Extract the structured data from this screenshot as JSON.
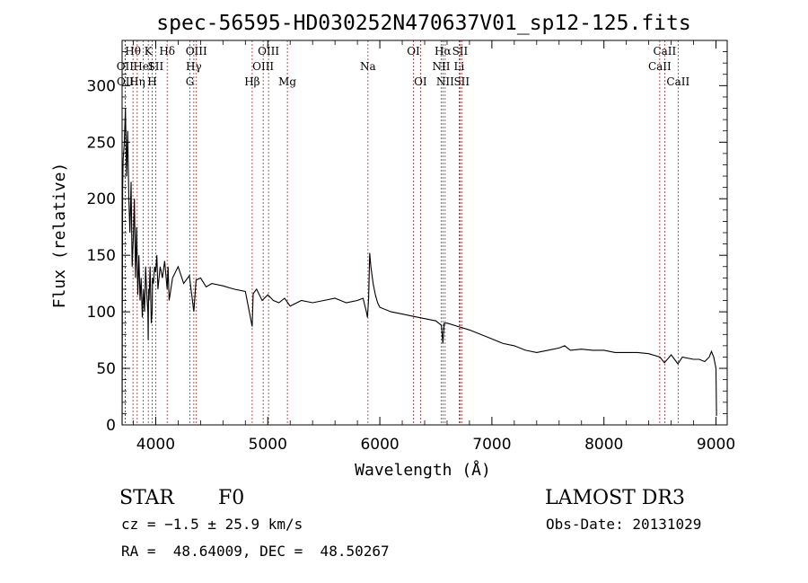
{
  "chart_data": {
    "type": "line",
    "title": "spec-56595-HD030252N470637V01_sp12-125.fits",
    "xlabel": "Wavelength (Å)",
    "ylabel": "Flux (relative)",
    "xlim": [
      3700,
      9100
    ],
    "ylim": [
      0,
      340
    ],
    "x_ticks": [
      4000,
      5000,
      6000,
      7000,
      8000,
      9000
    ],
    "y_ticks": [
      0,
      50,
      100,
      150,
      200,
      250,
      300
    ],
    "series": [
      {
        "name": "flux",
        "x": [
          3700,
          3705,
          3710,
          3720,
          3730,
          3740,
          3750,
          3760,
          3770,
          3780,
          3790,
          3800,
          3810,
          3820,
          3830,
          3840,
          3850,
          3860,
          3870,
          3880,
          3890,
          3900,
          3910,
          3920,
          3930,
          3933,
          3936,
          3940,
          3950,
          3960,
          3968,
          3972,
          3980,
          3990,
          4000,
          4010,
          4020,
          4040,
          4060,
          4080,
          4102,
          4110,
          4120,
          4150,
          4200,
          4250,
          4300,
          4340,
          4360,
          4400,
          4450,
          4500,
          4600,
          4700,
          4800,
          4861,
          4870,
          4900,
          4950,
          5000,
          5050,
          5100,
          5150,
          5200,
          5300,
          5400,
          5500,
          5600,
          5700,
          5800,
          5850,
          5880,
          5890,
          5900,
          5910,
          5920,
          5940,
          5960,
          5980,
          6000,
          6100,
          6200,
          6300,
          6400,
          6500,
          6550,
          6563,
          6575,
          6600,
          6700,
          6800,
          6900,
          7000,
          7100,
          7200,
          7300,
          7400,
          7500,
          7600,
          7650,
          7700,
          7800,
          7900,
          8000,
          8100,
          8200,
          8300,
          8400,
          8500,
          8540,
          8600,
          8660,
          8700,
          8800,
          8850,
          8900,
          8940,
          8960,
          8980,
          9000,
          9005
        ],
        "y": [
          0,
          210,
          235,
          250,
          280,
          220,
          260,
          200,
          170,
          215,
          140,
          165,
          200,
          130,
          175,
          115,
          150,
          110,
          130,
          95,
          120,
          100,
          140,
          115,
          100,
          75,
          120,
          110,
          140,
          90,
          100,
          130,
          125,
          140,
          135,
          150,
          120,
          140,
          130,
          145,
          120,
          140,
          110,
          130,
          140,
          125,
          132,
          100,
          128,
          130,
          122,
          125,
          123,
          120,
          118,
          87,
          116,
          120,
          110,
          115,
          110,
          108,
          112,
          105,
          110,
          108,
          110,
          112,
          108,
          110,
          112,
          100,
          95,
          112,
          152,
          140,
          125,
          115,
          108,
          104,
          100,
          98,
          96,
          94,
          92,
          88,
          72,
          90,
          90,
          87,
          84,
          80,
          76,
          72,
          70,
          66,
          64,
          66,
          68,
          70,
          66,
          67,
          66,
          66,
          64,
          64,
          64,
          63,
          60,
          55,
          62,
          54,
          60,
          58,
          58,
          56,
          60,
          65,
          60,
          50,
          8
        ]
      }
    ],
    "lines": [
      {
        "label": "Hθ",
        "x": 3797,
        "row": 0
      },
      {
        "label": "OII",
        "x": 3727,
        "row": 1
      },
      {
        "label": "OII",
        "x": 3729,
        "row": 2
      },
      {
        "label": "Hη",
        "x": 3835,
        "row": 2
      },
      {
        "label": "HeI",
        "x": 3889,
        "row": 1
      },
      {
        "label": "K",
        "x": 3934,
        "row": 0
      },
      {
        "label": "H",
        "x": 3968,
        "row": 2
      },
      {
        "label": "SII",
        "x": 4000,
        "row": 1
      },
      {
        "label": "Hδ",
        "x": 4102,
        "row": 0
      },
      {
        "label": "OIII",
        "x": 4363,
        "row": 0
      },
      {
        "label": "Hγ",
        "x": 4340,
        "row": 1
      },
      {
        "label": "G",
        "x": 4305,
        "row": 2
      },
      {
        "label": "Hβ",
        "x": 4861,
        "row": 2
      },
      {
        "label": "OIII",
        "x": 5007,
        "row": 0
      },
      {
        "label": "OIII",
        "x": 4959,
        "row": 1
      },
      {
        "label": "Mg",
        "x": 5175,
        "row": 2
      },
      {
        "label": "Na",
        "x": 5894,
        "row": 1
      },
      {
        "label": "OI",
        "x": 6300,
        "row": 0
      },
      {
        "label": "OI",
        "x": 6363,
        "row": 2
      },
      {
        "label": "Hα",
        "x": 6563,
        "row": 0
      },
      {
        "label": "NII",
        "x": 6548,
        "row": 1
      },
      {
        "label": "NII",
        "x": 6583,
        "row": 2
      },
      {
        "label": "SII",
        "x": 6716,
        "row": 0
      },
      {
        "label": "Li",
        "x": 6708,
        "row": 1
      },
      {
        "label": "SII",
        "x": 6731,
        "row": 2
      },
      {
        "label": "CaII",
        "x": 8542,
        "row": 0
      },
      {
        "label": "CaII",
        "x": 8498,
        "row": 1
      },
      {
        "label": "CaII",
        "x": 8662,
        "row": 2
      }
    ]
  },
  "info": {
    "object_class": "STAR",
    "subclass": "F0",
    "survey": "LAMOST DR3",
    "cz": "cz = −1.5 ± 25.9 km/s",
    "obs_date": "Obs-Date: 20131029",
    "coords": "RA =  48.64009, DEC =  48.50267"
  },
  "colors": {
    "line": "#000000",
    "marker": "#b22222",
    "axis": "#000000"
  }
}
